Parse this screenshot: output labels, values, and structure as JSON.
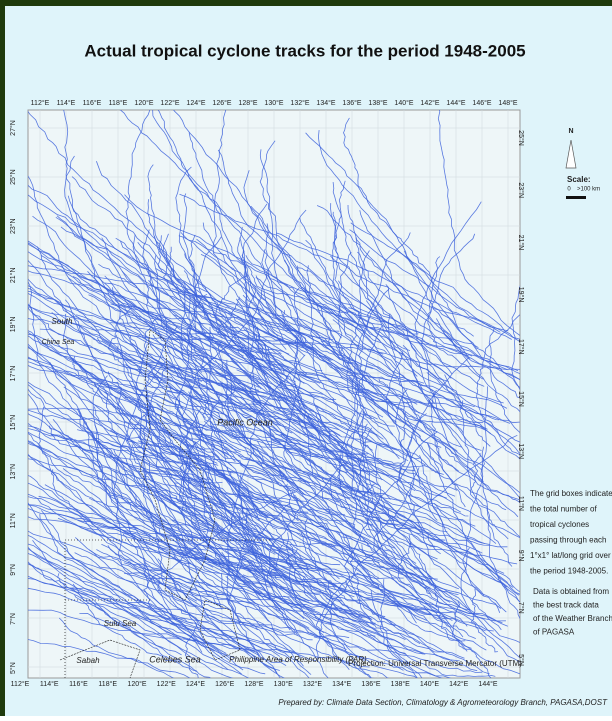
{
  "title": "Actual tropical cyclone tracks for the period 1948-2005",
  "top_axis_labels": [
    "112°E",
    "114°E",
    "116°E",
    "118°E",
    "120°E",
    "122°E",
    "124°E",
    "126°E",
    "128°E",
    "130°E",
    "132°E",
    "134°E",
    "136°E",
    "138°E",
    "140°E",
    "142°E",
    "144°E",
    "146°E",
    "148°E"
  ],
  "bottom_axis_labels": [
    "112°E",
    "114°E",
    "116°E",
    "118°E",
    "120°E",
    "122°E",
    "124°E",
    "126°E",
    "128°E",
    "130°E",
    "132°E",
    "134°E",
    "136°E",
    "138°E",
    "140°E",
    "142°E",
    "144°E"
  ],
  "left_lat_labels": [
    "27°N",
    "25°N",
    "23°N",
    "21°N",
    "19°N",
    "17°N",
    "15°N",
    "13°N",
    "11°N",
    "9°N",
    "7°N",
    "5°N"
  ],
  "right_lat_labels": [
    "25°N",
    "23°N",
    "21°N",
    "19°N",
    "17°N",
    "15°N",
    "13°N",
    "11°N",
    "9°N",
    "7°N",
    "5°N"
  ],
  "map_labels": {
    "south": "South",
    "china_sea": "China Sea",
    "pacific": "Pacific Ocean",
    "sulu": "Sulu Sea",
    "sabah": "Sabah",
    "celebes": "Celebes Sea",
    "par": "Philippine Area of Responsibility (PAR)",
    "projection": "Projection: Universal Transverse Mercator (UTM)"
  },
  "north": "N",
  "scale": {
    "title": "Scale:",
    "zero": "0",
    "distance": ">100 km"
  },
  "legend_note": [
    "The grid boxes indicate",
    "the total  number of",
    "tropical cyclones",
    "passing through each",
    "1°x1° lat/long grid over",
    "the period 1948-2005."
  ],
  "data_note": [
    "Data is obtained from",
    "the  best track  data",
    "of the Weather Branch",
    "of PAGASA"
  ],
  "footer": "Prepared by: Climate Data Section, Climatology & Agrometeorology Branch, PAGASA,DOST"
}
